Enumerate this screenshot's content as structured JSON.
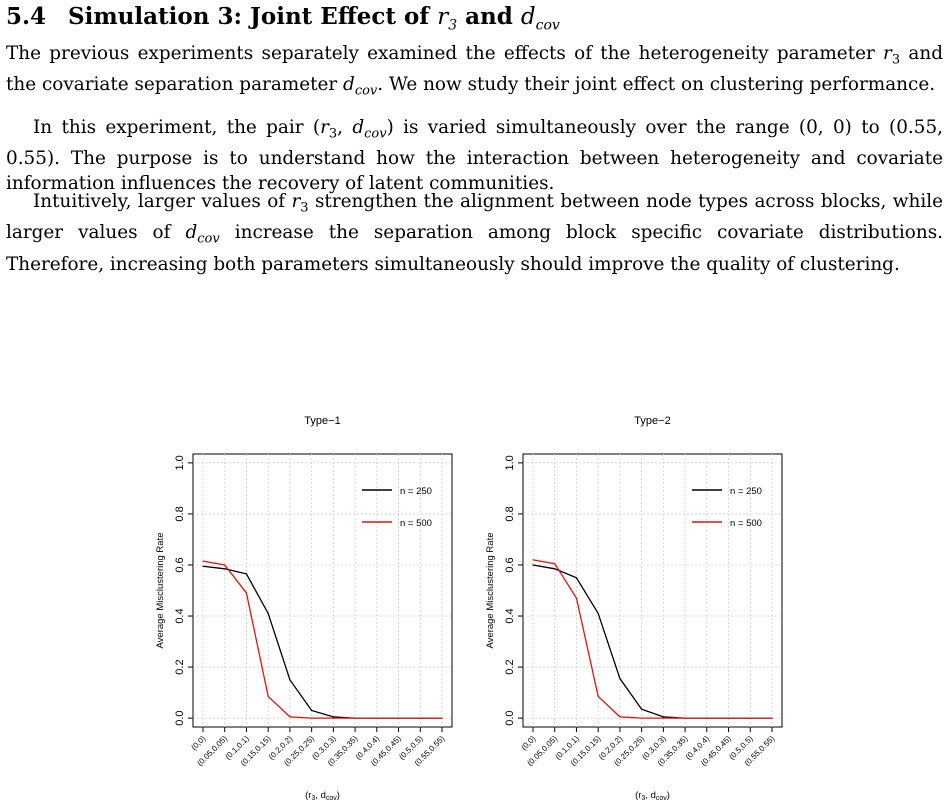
{
  "section": {
    "number": "5.4",
    "title_prefix": "Simulation 3: Joint Effect of ",
    "title_var1": "r",
    "title_var1_sub": "3",
    "title_and": " and ",
    "title_var2": "d",
    "title_var2_sub": "cov"
  },
  "paragraphs": {
    "p1": {
      "a": "The previous experiments separately examined the effects of the heterogeneity parameter ",
      "b": " and the covariate separation parameter ",
      "c": ". We now study their joint effect on clustering performance."
    },
    "p2": {
      "a": "In this experiment, the pair (",
      "b": ") is varied simultaneously over the range (0, 0) to (0.55, 0.55). The purpose is to understand how the interaction between heterogeneity and covariate information influences the recovery of latent communities."
    },
    "p3": {
      "a": "Intuitively, larger values of ",
      "b": " strengthen the alignment between node types across blocks, while larger values of ",
      "c": " increase the separation among block specific covariate distributions. Therefore, increasing both parameters simultaneously should improve the quality of clustering."
    }
  },
  "chart_data": [
    {
      "type": "line",
      "title": "Type−1",
      "xlabel": "(r3, dcov)",
      "ylabel": "Average Misclustering Rate",
      "ylim": [
        0,
        1
      ],
      "yticks": [
        "0.0",
        "0.2",
        "0.4",
        "0.6",
        "0.8",
        "1.0"
      ],
      "grid": true,
      "legend_position": "top-right",
      "categories": [
        "(0,0)",
        "(0.05,0.05)",
        "(0.1,0.1)",
        "(0.15,0.15)",
        "(0.2,0.2)",
        "(0.25,0.25)",
        "(0.3,0.3)",
        "(0.35,0.35)",
        "(0.4,0.4)",
        "(0.45,0.45)",
        "(0.5,0.5)",
        "(0.55,0.55)"
      ],
      "series": [
        {
          "name": "n = 250",
          "color": "#000000",
          "values": [
            0.595,
            0.585,
            0.565,
            0.41,
            0.15,
            0.03,
            0.005,
            0.0,
            0.0,
            0.0,
            0.0,
            0.0
          ]
        },
        {
          "name": "n = 500",
          "color": "#e3120b",
          "values": [
            0.615,
            0.6,
            0.49,
            0.085,
            0.005,
            0.0,
            0.0,
            0.0,
            0.0,
            0.0,
            0.0,
            0.0
          ]
        }
      ]
    },
    {
      "type": "line",
      "title": "Type−2",
      "xlabel": "(r3, dcov)",
      "ylabel": "Average Misclustering Rate",
      "ylim": [
        0,
        1
      ],
      "yticks": [
        "0.0",
        "0.2",
        "0.4",
        "0.6",
        "0.8",
        "1.0"
      ],
      "grid": true,
      "legend_position": "top-right",
      "categories": [
        "(0,0)",
        "(0.05,0.05)",
        "(0.1,0.1)",
        "(0.15,0.15)",
        "(0.2,0.2)",
        "(0.25,0.25)",
        "(0.3,0.3)",
        "(0.35,0.35)",
        "(0.4,0.4)",
        "(0.45,0.45)",
        "(0.5,0.5)",
        "(0.55,0.55)"
      ],
      "series": [
        {
          "name": "n = 250",
          "color": "#000000",
          "values": [
            0.6,
            0.585,
            0.55,
            0.41,
            0.155,
            0.035,
            0.005,
            0.0,
            0.0,
            0.0,
            0.0,
            0.0
          ]
        },
        {
          "name": "n = 500",
          "color": "#e3120b",
          "values": [
            0.62,
            0.605,
            0.47,
            0.085,
            0.005,
            0.0,
            0.0,
            0.0,
            0.0,
            0.0,
            0.0,
            0.0
          ]
        }
      ]
    }
  ]
}
